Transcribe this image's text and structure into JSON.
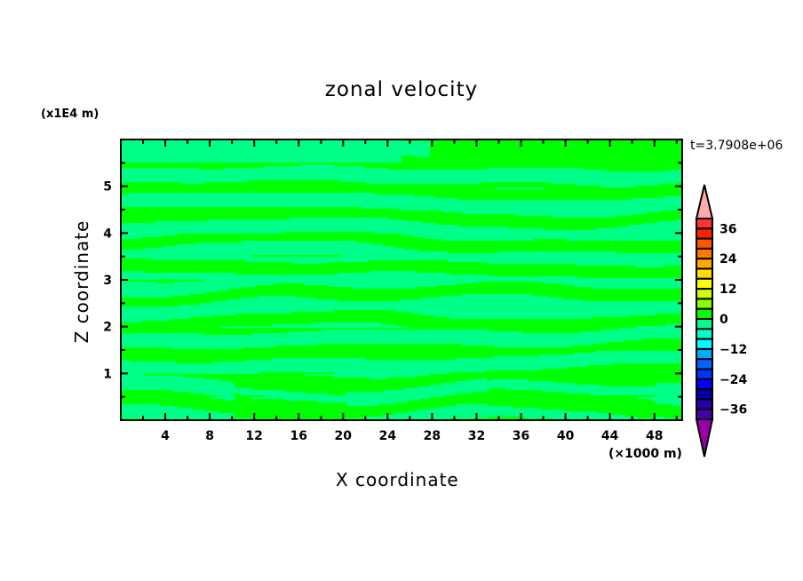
{
  "chart_data": {
    "type": "heatmap",
    "subtype": "filled-contour",
    "title": "zonal velocity",
    "xlabel": "X coordinate",
    "ylabel": "Z coordinate",
    "x_unit_label": "(×1000 m)",
    "y_unit_label": "(x1E4 m)",
    "annotation": "t=3.7908e+06",
    "xlim": [
      0,
      50.5
    ],
    "ylim": [
      0,
      6
    ],
    "x_ticks": [
      4,
      8,
      12,
      16,
      20,
      24,
      28,
      32,
      36,
      40,
      44,
      48
    ],
    "y_ticks": [
      1,
      2,
      3,
      4,
      5
    ],
    "grid": false,
    "colorbar": {
      "levels": [
        -40,
        -36,
        -32,
        -28,
        -24,
        -20,
        -16,
        -12,
        -8,
        -4,
        0,
        4,
        8,
        12,
        16,
        20,
        24,
        28,
        32,
        36,
        40
      ],
      "tick_labels": [
        "36",
        "24",
        "12",
        "0",
        "−12",
        "−24",
        "−36"
      ],
      "tick_values": [
        36,
        24,
        12,
        0,
        -12,
        -24,
        -36
      ],
      "colors_top_to_bottom": [
        "#ff3333",
        "#ff2200",
        "#ff5500",
        "#ff7700",
        "#ffaa00",
        "#ffdd00",
        "#ffff00",
        "#ccff00",
        "#88ff00",
        "#00ff00",
        "#00ff88",
        "#00ffcc",
        "#00ffff",
        "#00aaff",
        "#0066ff",
        "#0033ff",
        "#0000ff",
        "#0000aa",
        "#2200aa",
        "#4400aa"
      ],
      "over_color": "#ffaaaa",
      "under_color": "#9900aa",
      "extend": "both"
    },
    "field_summary": "values range within [-4, 4]: alternating horizontal bands of 0..4 (#00ff00) and -4..0 (#00ff88)"
  }
}
